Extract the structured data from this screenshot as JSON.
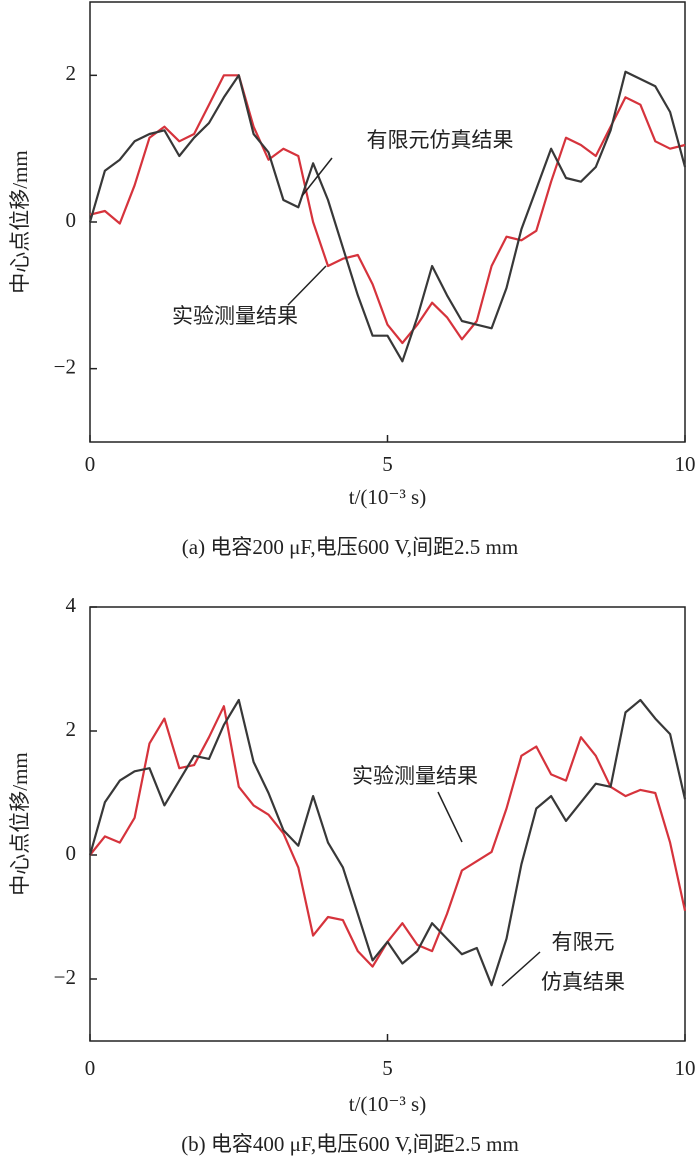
{
  "chart_data": [
    {
      "type": "line",
      "y_label": "中心点位移/mm",
      "x_label": "t/(10⁻³ s)",
      "caption": "(a) 电容200 μF,电压600 V,间距2.5 mm",
      "x": [
        0,
        0.25,
        0.5,
        0.75,
        1,
        1.25,
        1.5,
        1.75,
        2,
        2.25,
        2.5,
        2.75,
        3,
        3.25,
        3.5,
        3.75,
        4,
        4.25,
        4.5,
        4.75,
        5,
        5.25,
        5.5,
        5.75,
        6,
        6.25,
        6.5,
        6.75,
        7,
        7.25,
        7.5,
        7.75,
        8,
        8.25,
        8.5,
        8.75,
        9,
        9.25,
        9.5,
        9.75,
        10
      ],
      "series": [
        {
          "name": "实验测量结果",
          "color": "#d6333c",
          "values": [
            0.1,
            0.15,
            -0.02,
            0.5,
            1.15,
            1.3,
            1.1,
            1.2,
            1.6,
            2.0,
            2.0,
            1.3,
            0.85,
            1.0,
            0.9,
            0.0,
            -0.6,
            -0.5,
            -0.45,
            -0.85,
            -1.4,
            -1.65,
            -1.4,
            -1.1,
            -1.3,
            -1.6,
            -1.35,
            -0.6,
            -0.2,
            -0.25,
            -0.12,
            0.55,
            1.15,
            1.05,
            0.9,
            1.3,
            1.7,
            1.6,
            1.1,
            1.0,
            1.05
          ]
        },
        {
          "name": "有限元仿真结果",
          "color": "#383838",
          "values": [
            0,
            0.7,
            0.85,
            1.1,
            1.2,
            1.25,
            0.9,
            1.15,
            1.35,
            1.7,
            2.0,
            1.2,
            0.95,
            0.3,
            0.2,
            0.8,
            0.3,
            -0.35,
            -1.0,
            -1.55,
            -1.55,
            -1.9,
            -1.3,
            -0.6,
            -1.0,
            -1.35,
            -1.4,
            -1.45,
            -0.9,
            -0.1,
            0.45,
            1.0,
            0.6,
            0.55,
            0.75,
            1.25,
            2.05,
            1.95,
            1.85,
            1.5,
            0.75
          ]
        }
      ],
      "xlim": [
        0,
        10
      ],
      "xticks": [
        0,
        5,
        10
      ],
      "ylim": [
        -3,
        3
      ],
      "yticks": [
        {
          "value": -2,
          "label": "−2"
        },
        0,
        2
      ]
    },
    {
      "type": "line",
      "y_label": "中心点位移/mm",
      "x_label": "t/(10⁻³ s)",
      "caption": "(b) 电容400 μF,电压600 V,间距2.5 mm",
      "x": [
        0,
        0.25,
        0.5,
        0.75,
        1,
        1.25,
        1.5,
        1.75,
        2,
        2.25,
        2.5,
        2.75,
        3,
        3.25,
        3.5,
        3.75,
        4,
        4.25,
        4.5,
        4.75,
        5,
        5.25,
        5.5,
        5.75,
        6,
        6.25,
        6.5,
        6.75,
        7,
        7.25,
        7.5,
        7.75,
        8,
        8.25,
        8.5,
        8.75,
        9,
        9.25,
        9.5,
        9.75,
        10
      ],
      "series": [
        {
          "name": "实验测量结果",
          "color": "#d6333c",
          "values": [
            0,
            0.3,
            0.2,
            0.6,
            1.8,
            2.2,
            1.4,
            1.45,
            1.9,
            2.4,
            1.1,
            0.8,
            0.65,
            0.35,
            -0.2,
            -1.3,
            -1.0,
            -1.05,
            -1.55,
            -1.8,
            -1.4,
            -1.1,
            -1.45,
            -1.55,
            -0.95,
            -0.25,
            -0.1,
            0.05,
            0.75,
            1.6,
            1.75,
            1.3,
            1.2,
            1.9,
            1.6,
            1.1,
            0.95,
            1.05,
            1.0,
            0.2,
            -0.9
          ]
        },
        {
          "name": [
            "有限元",
            "仿真结果"
          ],
          "color": "#383838",
          "values": [
            0,
            0.85,
            1.2,
            1.35,
            1.4,
            0.8,
            1.2,
            1.6,
            1.55,
            2.1,
            2.5,
            1.5,
            1.0,
            0.4,
            0.15,
            0.95,
            0.2,
            -0.2,
            -0.95,
            -1.7,
            -1.4,
            -1.75,
            -1.55,
            -1.1,
            -1.35,
            -1.6,
            -1.5,
            -2.1,
            -1.35,
            -0.15,
            0.75,
            0.95,
            0.55,
            0.85,
            1.15,
            1.1,
            2.3,
            2.5,
            2.2,
            1.95,
            0.9
          ]
        }
      ],
      "xlim": [
        0,
        10
      ],
      "xticks": [
        0,
        5,
        10
      ],
      "ylim": [
        -3,
        4
      ],
      "yticks": [
        {
          "value": -2,
          "label": "−2"
        },
        0,
        2,
        4
      ]
    }
  ]
}
